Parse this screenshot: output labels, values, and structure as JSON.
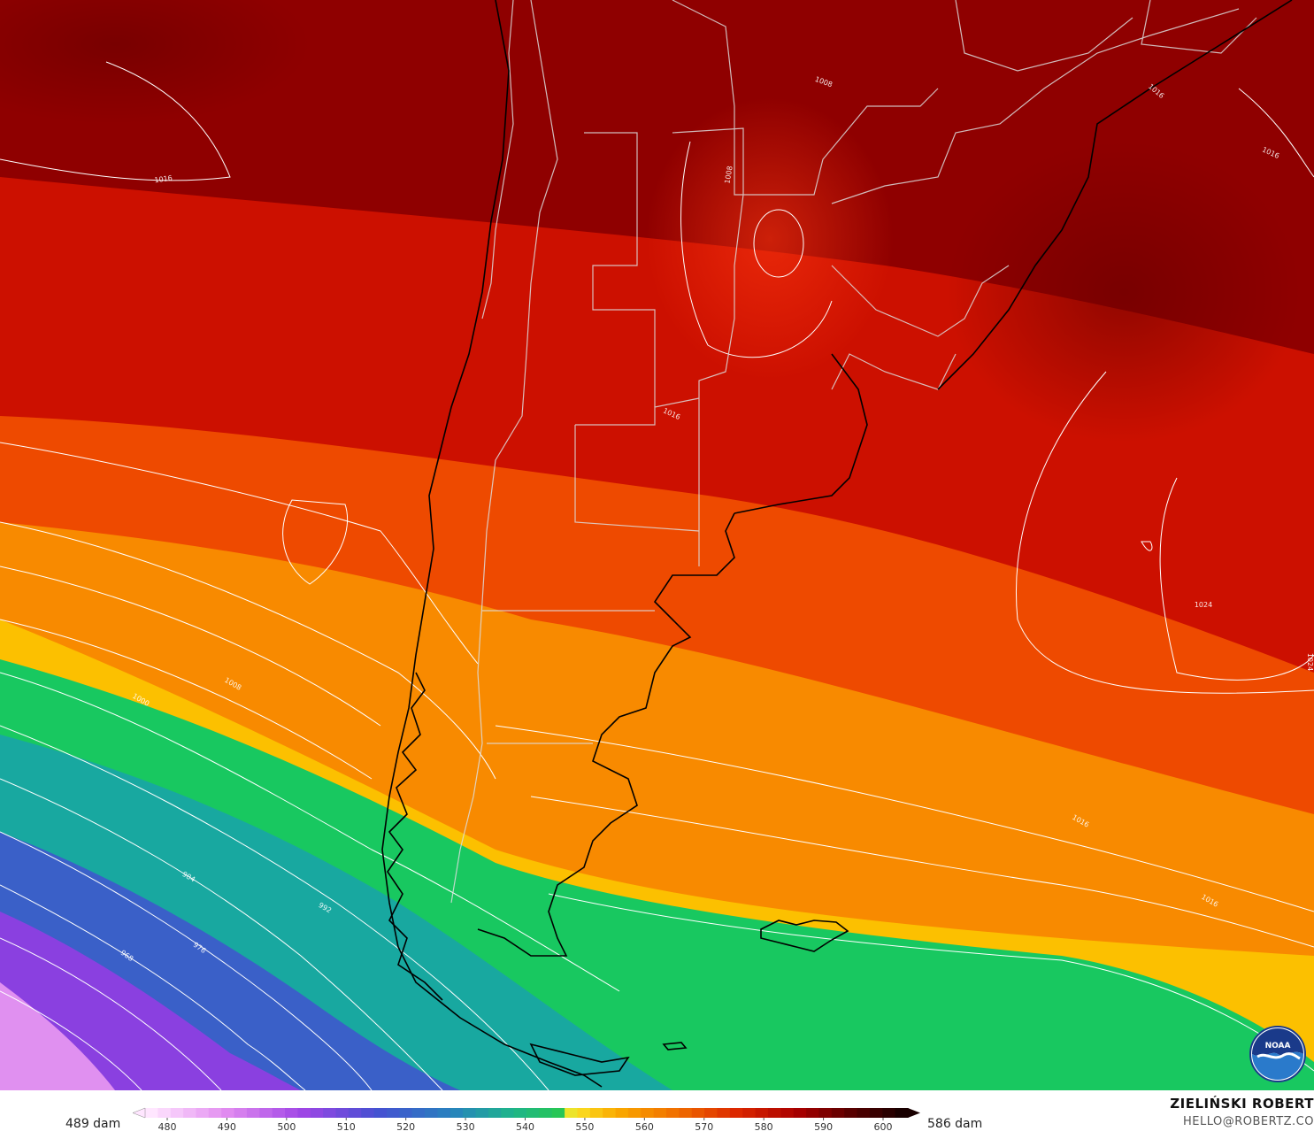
{
  "map": {
    "contour_labels": [
      {
        "text": "1016"
      },
      {
        "text": "1008"
      },
      {
        "text": "1008"
      },
      {
        "text": "1016"
      },
      {
        "text": "1016"
      },
      {
        "text": "1016"
      },
      {
        "text": "1024"
      },
      {
        "text": "1024"
      },
      {
        "text": "1008"
      },
      {
        "text": "1000"
      },
      {
        "text": "992"
      },
      {
        "text": "984"
      },
      {
        "text": "976"
      },
      {
        "text": "968"
      },
      {
        "text": "1016"
      },
      {
        "text": "1016"
      }
    ],
    "colors": {
      "deep_red": "#8f0000",
      "red": "#cc1000",
      "orange_red": "#ee4a00",
      "orange": "#f88a00",
      "yellow": "#fcc000",
      "green": "#18c860",
      "teal": "#18a8a0",
      "blue": "#3a60c8",
      "purple": "#8a40e0",
      "pink": "#e090f0",
      "coast": "#000000",
      "borders": "#dddddd",
      "isobars": "#ffffff"
    }
  },
  "legend": {
    "min_label": "489 dam",
    "max_label": "586 dam",
    "ticks": [
      "480",
      "490",
      "500",
      "510",
      "520",
      "530",
      "540",
      "550",
      "560",
      "570",
      "580",
      "590",
      "600"
    ]
  },
  "credits": {
    "name": "ZIELIŃSKI ROBERT",
    "email": "HELLO@ROBERTZ.CO"
  },
  "logo": {
    "icon": "noaa-logo-icon"
  }
}
